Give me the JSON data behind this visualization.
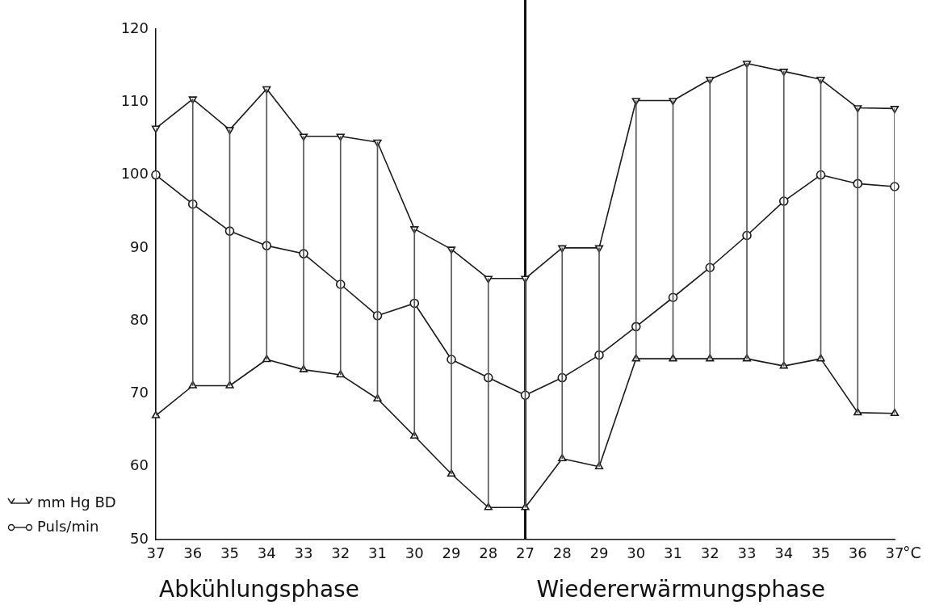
{
  "chart_data": {
    "type": "line",
    "xlabel": "°C",
    "categories": [
      "37",
      "36",
      "35",
      "34",
      "33",
      "32",
      "31",
      "30",
      "29",
      "28",
      "27",
      "28",
      "29",
      "30",
      "31",
      "32",
      "33",
      "34",
      "35",
      "36",
      "37"
    ],
    "ylim": [
      50,
      120
    ],
    "yticks": [
      50,
      60,
      70,
      80,
      90,
      100,
      110,
      120
    ],
    "grid": false,
    "legend": "bottom left",
    "series": [
      {
        "name": "mm Hg BD",
        "color": "#1a1a1a",
        "marker": "triangle",
        "values": [
          106.4,
          110.4,
          106.2,
          111.8,
          105.3,
          105.3,
          104.5,
          92.6,
          89.8,
          85.8,
          85.8,
          90,
          90,
          110.2,
          110.2,
          113.1,
          115.3,
          114.2,
          113.1,
          109.2,
          109.1
        ]
      },
      {
        "name": "Puls/min",
        "color": "#1a1a1a",
        "marker": "circle",
        "values": [
          100,
          96,
          92.3,
          90.3,
          89.2,
          85,
          80.7,
          82.4,
          74.7,
          72.2,
          69.8,
          72.2,
          75.3,
          79.2,
          83.2,
          87.3,
          91.7,
          96.4,
          100,
          98.8,
          98.4
        ]
      },
      {
        "color": "#1a1a1a",
        "marker": "triangle",
        "values": [
          67,
          71.1,
          71.1,
          74.7,
          73.3,
          72.6,
          69.3,
          64.2,
          59,
          54.4,
          54.4,
          61.1,
          60,
          74.8,
          74.8,
          74.8,
          74.8,
          73.8,
          74.8,
          67.4,
          67.3
        ]
      },
      {
        "type": "bar",
        "color": "#555555",
        "base": [
          67,
          71.1,
          71.1,
          74.7,
          73.3,
          72.6,
          69.3,
          64.2,
          59,
          54.4,
          54.4,
          61.1,
          60,
          74.8,
          74.8,
          74.8,
          74.8,
          73.8,
          74.8,
          67.4,
          67.3
        ],
        "values": [
          39.4,
          39.3,
          35.1,
          37.1,
          32,
          32.7,
          35.2,
          28.4,
          30.8,
          31.4,
          31.4,
          28.9,
          30,
          35.4,
          35.4,
          38.3,
          40.5,
          40.4,
          38.3,
          41.8,
          41.8
        ]
      }
    ],
    "ref_lines": [
      {
        "axis": "x",
        "value": "27",
        "color": "#111111"
      }
    ],
    "annotations": [
      "Abkühlungsphase",
      "Wiedererwärmungsphase"
    ]
  }
}
